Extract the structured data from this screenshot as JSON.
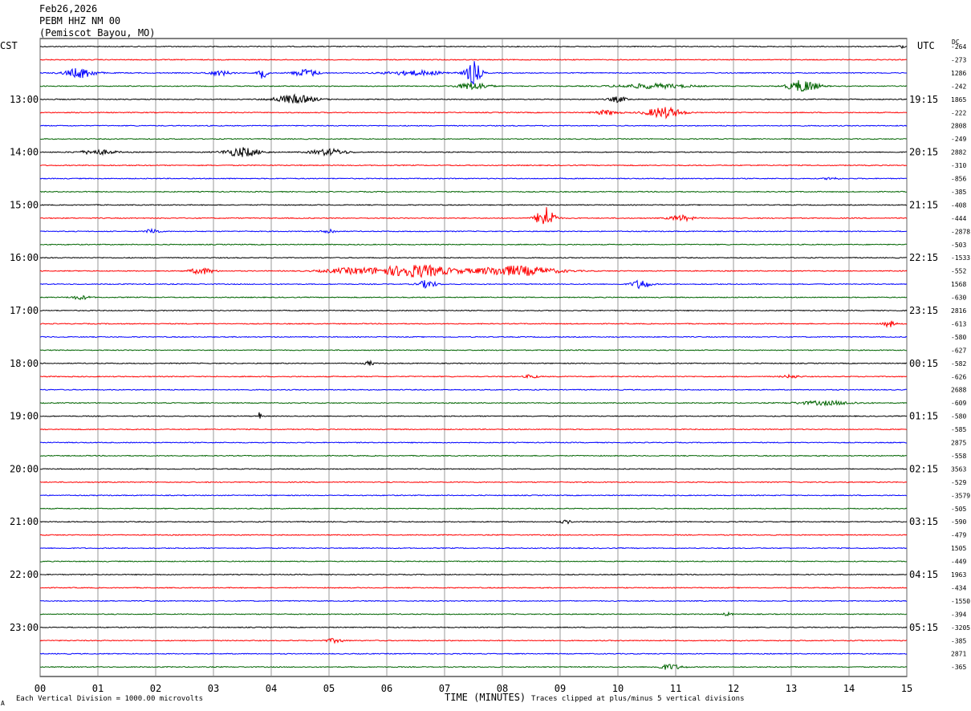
{
  "header": {
    "date": "Feb26,2026",
    "station": "PEBM HHZ NM 00",
    "location": "(Pemiscot Bayou, MO)"
  },
  "left_tz": "CST",
  "right_tz": "UTC",
  "dc_label": "DC",
  "footer": {
    "scale_note": "Each Vertical Division = 1000.00 microvolts",
    "x_title": "TIME (MINUTES)",
    "clip_note": "Traces clipped at plus/minus 5 vertical divisions",
    "corner_mark": "A"
  },
  "colors": {
    "trace_cycle": [
      "#000000",
      "#ff0000",
      "#0000ff",
      "#006400"
    ],
    "grid": "#808080"
  },
  "chart_data": {
    "type": "line",
    "title": "",
    "xlabel": "TIME (MINUTES)",
    "x_ticks": [
      "00",
      "01",
      "02",
      "03",
      "04",
      "05",
      "06",
      "07",
      "08",
      "09",
      "10",
      "11",
      "12",
      "13",
      "14",
      "15"
    ],
    "xlim": [
      0,
      15
    ],
    "left_hour_labels": [
      "13:00",
      "14:00",
      "15:00",
      "16:00",
      "17:00",
      "18:00",
      "19:00",
      "20:00",
      "21:00",
      "22:00",
      "23:00"
    ],
    "right_hour_labels": [
      "19:15",
      "20:15",
      "21:15",
      "22:15",
      "23:15",
      "00:15",
      "01:15",
      "02:15",
      "03:15",
      "04:15",
      "05:15"
    ],
    "hour_label_start_trace": 4,
    "traces_per_hour": 4,
    "dc_offsets": [
      "-264",
      "-273",
      "1286",
      "-242",
      "1865",
      "-222",
      "2808",
      "-249",
      "2882",
      "-310",
      "-856",
      "-385",
      "-408",
      "-444",
      "-2878",
      "-503",
      "-1533",
      "-552",
      "1568",
      "-630",
      "2816",
      "-613",
      "-580",
      "-627",
      "-582",
      "-626",
      "2688",
      "-609",
      "-580",
      "-585",
      "2875",
      "-558",
      "3563",
      "-529",
      "-3579",
      "-505",
      "-590",
      "-479",
      "1505",
      "-449",
      "1963",
      "-434",
      "-1550",
      "-394",
      "-3205",
      "-385",
      "2871",
      "-365"
    ],
    "events": [
      {
        "trace": 0,
        "minute": 14.9,
        "width": 0.1,
        "amp": 0.4
      },
      {
        "trace": 2,
        "minute": 0.7,
        "width": 0.5,
        "amp": 1.3
      },
      {
        "trace": 2,
        "minute": 3.1,
        "width": 0.4,
        "amp": 0.6
      },
      {
        "trace": 2,
        "minute": 3.85,
        "width": 0.15,
        "amp": 1.4
      },
      {
        "trace": 2,
        "minute": 4.6,
        "width": 0.4,
        "amp": 1.0
      },
      {
        "trace": 2,
        "minute": 6.5,
        "width": 1.0,
        "amp": 0.6
      },
      {
        "trace": 2,
        "minute": 7.5,
        "width": 0.25,
        "amp": 3.0
      },
      {
        "trace": 3,
        "minute": 7.5,
        "width": 0.5,
        "amp": 1.0
      },
      {
        "trace": 3,
        "minute": 10.6,
        "width": 1.2,
        "amp": 0.6
      },
      {
        "trace": 3,
        "minute": 13.2,
        "width": 0.5,
        "amp": 1.6
      },
      {
        "trace": 4,
        "minute": 4.4,
        "width": 0.7,
        "amp": 1.1
      },
      {
        "trace": 4,
        "minute": 10.0,
        "width": 0.3,
        "amp": 0.7
      },
      {
        "trace": 5,
        "minute": 10.8,
        "width": 0.6,
        "amp": 1.4
      },
      {
        "trace": 5,
        "minute": 9.8,
        "width": 0.4,
        "amp": 0.6
      },
      {
        "trace": 8,
        "minute": 1.0,
        "width": 0.6,
        "amp": 0.6
      },
      {
        "trace": 8,
        "minute": 3.5,
        "width": 0.6,
        "amp": 1.2
      },
      {
        "trace": 8,
        "minute": 5.0,
        "width": 0.6,
        "amp": 0.8
      },
      {
        "trace": 10,
        "minute": 13.7,
        "width": 0.2,
        "amp": 0.4
      },
      {
        "trace": 13,
        "minute": 8.75,
        "width": 0.3,
        "amp": 3.0
      },
      {
        "trace": 13,
        "minute": 11.1,
        "width": 0.4,
        "amp": 0.7
      },
      {
        "trace": 14,
        "minute": 1.95,
        "width": 0.2,
        "amp": 0.8
      },
      {
        "trace": 14,
        "minute": 5.0,
        "width": 0.2,
        "amp": 0.7
      },
      {
        "trace": 17,
        "minute": 2.8,
        "width": 0.4,
        "amp": 0.8
      },
      {
        "trace": 17,
        "minute": 6.5,
        "width": 1.2,
        "amp": 1.6
      },
      {
        "trace": 17,
        "minute": 8.2,
        "width": 1.4,
        "amp": 1.3
      },
      {
        "trace": 17,
        "minute": 5.4,
        "width": 1.0,
        "amp": 0.7
      },
      {
        "trace": 18,
        "minute": 6.7,
        "width": 0.3,
        "amp": 1.0
      },
      {
        "trace": 18,
        "minute": 10.4,
        "width": 0.3,
        "amp": 1.2
      },
      {
        "trace": 19,
        "minute": 0.7,
        "width": 0.3,
        "amp": 0.5
      },
      {
        "trace": 21,
        "minute": 14.7,
        "width": 0.2,
        "amp": 0.8
      },
      {
        "trace": 24,
        "minute": 5.7,
        "width": 0.15,
        "amp": 0.6
      },
      {
        "trace": 25,
        "minute": 8.5,
        "width": 0.2,
        "amp": 0.5
      },
      {
        "trace": 25,
        "minute": 13.0,
        "width": 0.3,
        "amp": 0.4
      },
      {
        "trace": 27,
        "minute": 13.6,
        "width": 1.0,
        "amp": 0.5
      },
      {
        "trace": 28,
        "minute": 3.8,
        "width": 0.05,
        "amp": 1.2
      },
      {
        "trace": 36,
        "minute": 9.1,
        "width": 0.2,
        "amp": 0.4
      },
      {
        "trace": 43,
        "minute": 11.9,
        "width": 0.15,
        "amp": 0.4
      },
      {
        "trace": 45,
        "minute": 5.1,
        "width": 0.3,
        "amp": 0.5
      },
      {
        "trace": 47,
        "minute": 10.9,
        "width": 0.4,
        "amp": 0.7
      }
    ]
  }
}
